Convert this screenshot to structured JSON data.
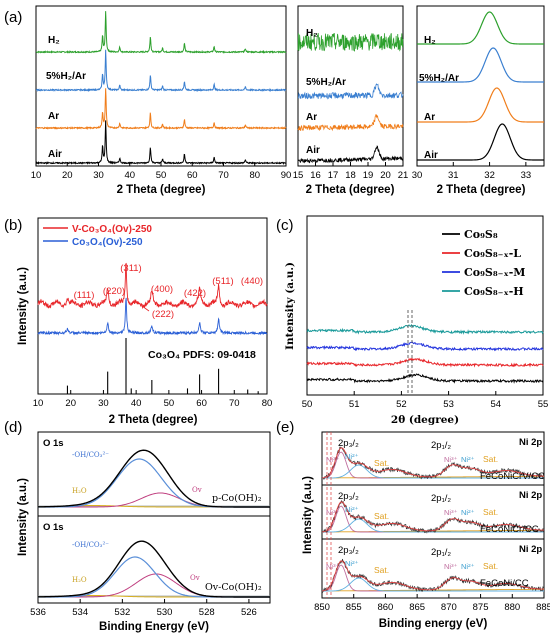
{
  "chart_data": [
    {
      "panel": "(a)",
      "type": "line",
      "xlabel": "2 Theta (degree)",
      "xlim": [
        10,
        90
      ],
      "xticks": [
        "10",
        "20",
        "30",
        "40",
        "50",
        "60",
        "70",
        "80",
        "90"
      ],
      "series_labels": [
        "H₂",
        "5%H₂/Ar",
        "Ar",
        "Air"
      ],
      "colors": [
        "#2ca02c",
        "#3a7fd0",
        "#f07d1a",
        "#000000"
      ],
      "peaks": [
        {
          "x": 31.3,
          "h": 0.4
        },
        {
          "x": 32.3,
          "h": 1.0
        },
        {
          "x": 36.8,
          "h": 0.12
        },
        {
          "x": 46.6,
          "h": 0.38
        },
        {
          "x": 50.5,
          "h": 0.1
        },
        {
          "x": 57.5,
          "h": 0.22
        },
        {
          "x": 67.0,
          "h": 0.14
        },
        {
          "x": 77.0,
          "h": 0.08
        }
      ]
    },
    {
      "panel": "(a) middle",
      "type": "line",
      "xlabel": "2 Theta (degree)",
      "xlim": [
        15,
        21
      ],
      "xticks": [
        "15",
        "16",
        "17",
        "18",
        "19",
        "20",
        "21"
      ],
      "series_labels": [
        "H₂",
        "5%H₂/Ar",
        "Ar",
        "Air"
      ],
      "peak_x": 19.5
    },
    {
      "panel": "(a) right",
      "type": "line",
      "xlabel": "2 Theta (degree)",
      "xlim": [
        30,
        33.5
      ],
      "xticks": [
        "30",
        "31",
        "32",
        "33"
      ],
      "series_labels": [
        "H₂",
        "5%H₂/Ar",
        "Ar",
        "Air"
      ],
      "peak_x": [
        32.0,
        32.1,
        32.2,
        32.35
      ]
    },
    {
      "panel": "(b)",
      "type": "line",
      "xlabel": "2 Theta (degree)",
      "ylabel": "Intensity (a.u.)",
      "xlim": [
        10,
        80
      ],
      "xticks": [
        "10",
        "20",
        "30",
        "40",
        "50",
        "60",
        "70",
        "80"
      ],
      "legend": [
        "V-Co₃O₄(Ov)-250",
        "Co₃O₄(Ov)-250"
      ],
      "colors": [
        "#e8262a",
        "#2a5fd6"
      ],
      "reference": "Co₃O₄ PDFS: 09-0418",
      "peaks": [
        {
          "x": 19.0,
          "label": "(111)"
        },
        {
          "x": 31.3,
          "label": "(220)"
        },
        {
          "x": 36.9,
          "label": "(311)"
        },
        {
          "x": 38.5,
          "label": "(222)"
        },
        {
          "x": 44.8,
          "label": "(400)"
        },
        {
          "x": 55.7,
          "label": "(422)"
        },
        {
          "x": 59.4,
          "label": "(511)"
        },
        {
          "x": 65.2,
          "label": "(440)"
        }
      ],
      "reference_lines": [
        {
          "x": 19.0,
          "h": 0.15
        },
        {
          "x": 31.3,
          "h": 0.4
        },
        {
          "x": 36.9,
          "h": 1.0
        },
        {
          "x": 38.5,
          "h": 0.1
        },
        {
          "x": 44.8,
          "h": 0.25
        },
        {
          "x": 55.7,
          "h": 0.1
        },
        {
          "x": 59.4,
          "h": 0.35
        },
        {
          "x": 65.2,
          "h": 0.45
        },
        {
          "x": 74.1,
          "h": 0.08
        },
        {
          "x": 77.3,
          "h": 0.05
        }
      ]
    },
    {
      "panel": "(c)",
      "type": "line",
      "xlabel": "2θ (degree)",
      "ylabel": "Intensity (a.u.)",
      "xlim": [
        50,
        55
      ],
      "xticks": [
        "50",
        "51",
        "52",
        "53",
        "54",
        "55"
      ],
      "legend": [
        "Co₉S₈",
        "Co₉S₈₋ₓ-L",
        "Co₉S₈₋ₓ-M",
        "Co₉S₈₋ₓ-H"
      ],
      "colors": [
        "#000000",
        "#e8262a",
        "#2233dd",
        "#1a9a9a"
      ],
      "peak_x": [
        52.3,
        52.28,
        52.25,
        52.2
      ]
    },
    {
      "panel": "(d)",
      "type": "line",
      "xlabel": "Binding Energy (eV)",
      "ylabel": "Intensity (a.u.)",
      "xlim": [
        536,
        525
      ],
      "xticks": [
        "536",
        "534",
        "532",
        "530",
        "528",
        "526"
      ],
      "subplots": [
        {
          "title": "O 1s",
          "sample": "p-Co(OH)₂",
          "components": [
            "-OH/CO₃²⁻",
            "H₂O",
            "Ov"
          ]
        },
        {
          "title": "O 1s",
          "sample": "Ov-Co(OH)₂",
          "components": [
            "-OH/CO₃²⁻",
            "H₂O",
            "Ov"
          ]
        }
      ]
    },
    {
      "panel": "(e)",
      "type": "line",
      "xlabel": "Binding energy (eV)",
      "ylabel": "Intensity (a.u.)",
      "xlim": [
        850,
        885
      ],
      "xticks": [
        "850",
        "855",
        "860",
        "865",
        "870",
        "875",
        "880",
        "885"
      ],
      "subplots": [
        {
          "title": "Ni 2p",
          "sample": "FeCoNiCrV/CC"
        },
        {
          "title": "Ni 2p",
          "sample": "FeCoNiCr/CC"
        },
        {
          "title": "Ni 2p",
          "sample": "FeCoNi/CC"
        }
      ],
      "annotations": [
        "2p₃/₂",
        "2p₁/₂",
        "Ni³⁺",
        "Ni²⁺",
        "Sat."
      ]
    }
  ],
  "labels": {
    "a": "(a)",
    "b": "(b)",
    "c": "(c)",
    "d": "(d)",
    "e": "(e)",
    "h2": "H₂",
    "h2ar": "5%H₂/Ar",
    "ar": "Ar",
    "air": "Air",
    "two_theta": "2 Theta (degree)",
    "b_leg1": "V-Co₃O₄(Ov)-250",
    "b_leg2": "Co₃O₄(Ov)-250",
    "b_ref": "Co₃O₄ PDFS: 09-0418",
    "intensity": "Intensity (a.u.)",
    "c_xlabel": "2θ (degree)",
    "c_ylabel": "Intensity (a.u.)",
    "c_leg1": "Co₉S₈",
    "c_leg2": "Co₉S₈₋ₓ-L",
    "c_leg3": "Co₉S₈₋ₓ-M",
    "c_leg4": "Co₉S₈₋ₓ-H",
    "d_o1s": "O 1s",
    "d_oh": "-OH/CO₃²⁻",
    "d_h2o": "H₂O",
    "d_ov": "Ov",
    "d_s1": "p-Co(OH)₂",
    "d_s2": "Ov-Co(OH)₂",
    "d_xlabel": "Binding Energy (eV)",
    "e_ni2p": "Ni 2p",
    "e_s1": "FeCoNiCrV/CC",
    "e_s2": "FeCoNiCr/CC",
    "e_s3": "FeCoNi/CC",
    "e_p32": "2p₃/₂",
    "e_p12": "2p₁/₂",
    "e_ni3": "Ni³⁺",
    "e_ni2": "Ni²⁺",
    "e_sat": "Sat.",
    "e_xlabel": "Binding energy (eV)"
  }
}
